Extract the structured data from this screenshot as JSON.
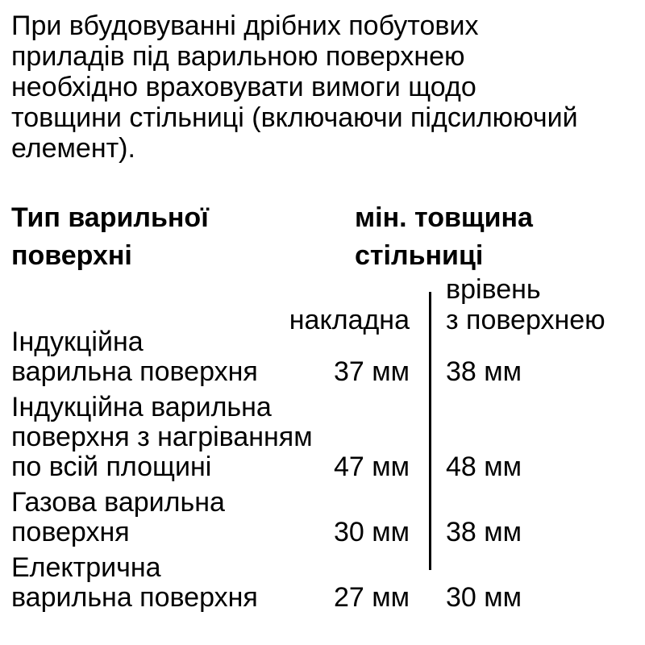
{
  "intro": "При вбудовуванні дрібних побутових\nприладів під варильною поверхнею\nнеобхідно враховувати вимоги щодо\nтовщини стільниці (включаючи підсилюючий\nелемент).",
  "table": {
    "col1_header": "Тип варильної\nповерхні",
    "col2_header": "мін. товщина\nстільниці",
    "subcolumns": {
      "overlay_label": "накладна",
      "flush_label": "врівень\nз поверхнею"
    },
    "rows": [
      {
        "name": "Індукційна\nварильна поверхня",
        "overlay": "37 мм",
        "flush": "38 мм"
      },
      {
        "name": "Індукційна варильна\nповерхня з нагріванням\nпо всій площині",
        "overlay": "47 мм",
        "flush": "48 мм"
      },
      {
        "name": "Газова варильна\nповерхня",
        "overlay": "30 мм",
        "flush": "38 мм"
      },
      {
        "name": "Електрична\nварильна поверхня",
        "overlay": "27 мм",
        "flush": "30 мм"
      }
    ]
  },
  "colors": {
    "background": "#ffffff",
    "text": "#000000",
    "divider": "#000000"
  }
}
